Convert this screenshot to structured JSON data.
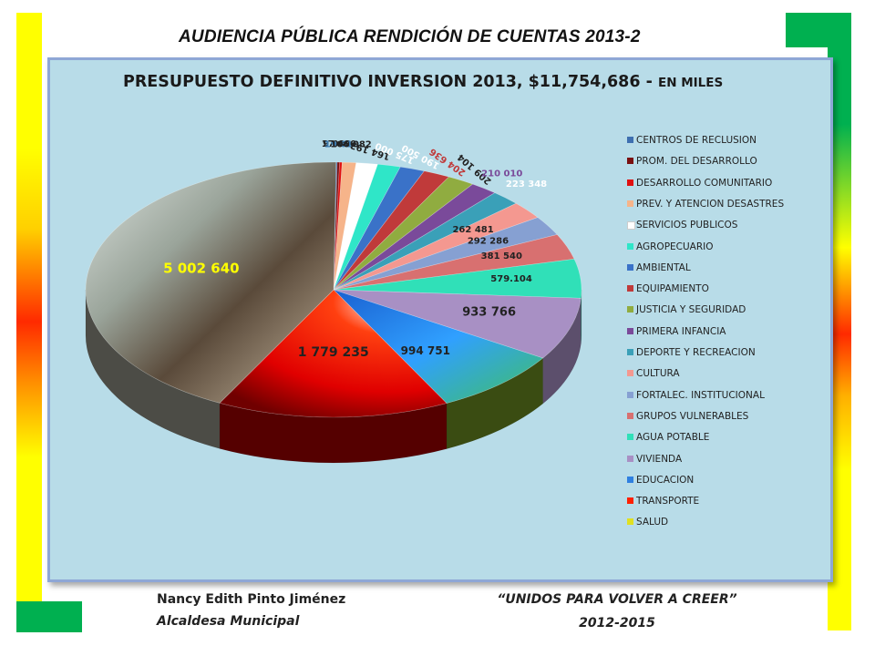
{
  "header": {
    "title": "AUDIENCIA PÚBLICA RENDICIÓN DE CUENTAS 2013-2"
  },
  "chart_data": {
    "type": "pie",
    "title_main": "PRESUPUESTO DEFINITIVO  INVERSION  2013, $11,754,686 - ",
    "title_unit": "EN MILES",
    "legend_position": "right",
    "categories": [
      "CENTROS DE RECLUSION",
      "PROM.  DEL DESARROLLO",
      "DESARROLLO COMUNITARIO",
      "PREV. Y ATENCION  DESASTRES",
      "SERVICIOS PUBLICOS",
      "AGROPECUARIO",
      "AMBIENTAL",
      "EQUIPAMIENTO",
      "JUSTICIA Y SEGURIDAD",
      " PRIMERA INFANCIA",
      "DEPORTE Y RECREACION",
      "CULTURA",
      "FORTALEC.  INSTITUCIONAL",
      "GRUPOS VULNERABLES",
      "AGUA POTABLE",
      "VIVIENDA",
      "EDUCACION",
      "TRANSPORTE",
      "SALUD"
    ],
    "values": [
      9000,
      17400,
      19610,
      106082,
      164193,
      175000,
      190500,
      204636,
      209104,
      210010,
      223348,
      262481,
      292286,
      381540,
      579104,
      933766,
      994751,
      1779235,
      5002640
    ],
    "data_labels": [
      "9 000",
      "17 400",
      "19 610",
      "106 082",
      "164 193",
      "175 000",
      "190 500",
      "204 636",
      "209 104",
      "210 010",
      "223 348",
      "262 481",
      "292 286",
      "381 540",
      "579.104",
      "933 766",
      "994 751",
      "1 779 235",
      "5 002 640"
    ],
    "colors": [
      "#3e6fb0",
      "#7a1010",
      "#e01010",
      "#f6b48a",
      "#ffffff",
      "#2fe6c8",
      "#3a72c8",
      "#c03a3a",
      "#90ac40",
      "#7a4a9a",
      "#3aa0b8",
      "#f49890",
      "#86a0d2",
      "#d87070",
      "#30e0b8",
      "#a890c4",
      "#2f80e0",
      "#ff2000",
      "#e0e020"
    ],
    "label_colors": [
      "#222222",
      "#222222",
      "#3a7ab0",
      "#222222",
      "#222222",
      "#ffffff",
      "#ffffff",
      "#c03a3a",
      "#222222",
      "#7a4a9a",
      "#ffffff",
      "#222222",
      "#222222",
      "#222222",
      "#222222",
      "#222222",
      "#222222",
      "#222222",
      "#ffff00"
    ]
  },
  "footer": {
    "name": "Nancy Edith Pinto Jiménez",
    "role": "Alcaldesa Municipal",
    "slogan": "“UNIDOS PARA VOLVER A CREER”",
    "years": "2012-2015"
  }
}
